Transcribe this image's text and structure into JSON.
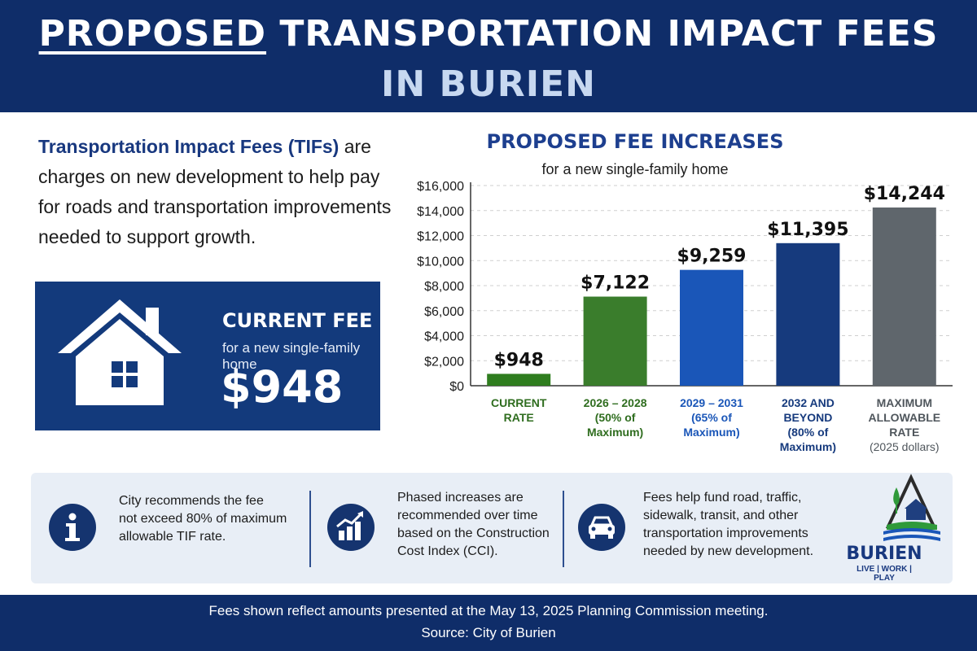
{
  "header": {
    "title_emphasis": "PROPOSED",
    "title_rest": " TRANSPORTATION IMPACT FEES",
    "title_line2": "IN BURIEN"
  },
  "intro": {
    "term": "Transportation Impact Fees (TIFs)",
    "text": " are charges on new development to help pay for roads and transportation improvements needed to support growth."
  },
  "current_fee": {
    "title": "CURRENT FEE",
    "subtitle": "for a new single-family home",
    "value": "$948",
    "icon": "house-icon"
  },
  "chart_data": {
    "type": "bar",
    "title": "PROPOSED FEE INCREASES",
    "subtitle": "for a new single-family home",
    "ylim": [
      0,
      16000
    ],
    "yticks": [
      "$0",
      "$2,000",
      "$4,000",
      "$6,000",
      "$8,000",
      "$10,000",
      "$12,000",
      "$14,000",
      "$16,000"
    ],
    "grid": true,
    "categories": [
      [
        "CURRENT",
        "RATE"
      ],
      [
        "2026 – 2028",
        "(50% of",
        "Maximum)"
      ],
      [
        "2029 – 2031",
        "(65% of",
        "Maximum)"
      ],
      [
        "2032 AND",
        "BEYOND",
        "(80% of",
        "Maximum)"
      ],
      [
        "MAXIMUM",
        "ALLOWABLE",
        "RATE",
        "(2025 dollars)"
      ]
    ],
    "values": [
      948,
      7122,
      9259,
      11395,
      14244
    ],
    "value_labels": [
      "$948",
      "$7,122",
      "$9,259",
      "$11,395",
      "$14,244"
    ],
    "colors": [
      "#2f7d1f",
      "#3a7d2c",
      "#1a56b8",
      "#163a7d",
      "#5f666c"
    ],
    "label_colors": [
      "#2f6d1f",
      "#2f6d1f",
      "#1a56b8",
      "#163a7d",
      "#4f565c"
    ]
  },
  "info": [
    {
      "icon": "info-icon",
      "text": [
        "City recommends the fee",
        "not exceed 80% of maximum",
        "allowable TIF rate."
      ]
    },
    {
      "icon": "bar-growth-icon",
      "text": [
        "Phased increases are",
        "recommended over time",
        "based on the Construction",
        "Cost Index (CCI)."
      ]
    },
    {
      "icon": "car-icon",
      "text": [
        "Fees help fund road, traffic,",
        "sidewalk, transit, and other",
        "transportation improvements",
        "needed by new development."
      ]
    }
  ],
  "logo": {
    "word": "BURIEN",
    "tagline": "LIVE | WORK | PLAY"
  },
  "footer": {
    "line1": "Fees shown reflect amounts presented at the May 13, 2025 Planning Commission meeting.",
    "line2": "Source: City of Burien"
  }
}
